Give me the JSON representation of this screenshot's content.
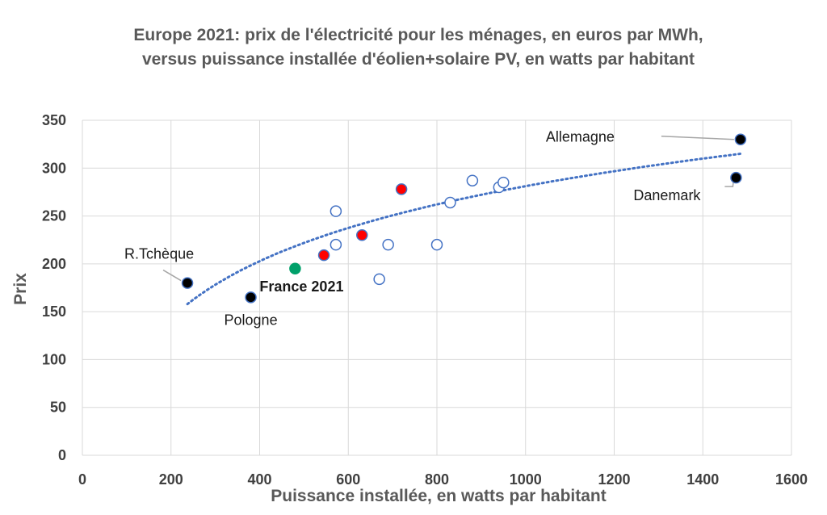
{
  "chart_data": {
    "type": "scatter",
    "title_lines": [
      "Europe 2021: prix de l'électricité pour les ménages, en euros par MWh,",
      "versus puissance installée d'éolien+solaire PV, en watts par habitant"
    ],
    "xlabel": "Puissance installée, en watts par habitant",
    "ylabel": "Prix",
    "xlim": [
      0,
      1600
    ],
    "ylim": [
      0,
      350
    ],
    "x_ticks": [
      0,
      200,
      400,
      600,
      800,
      1000,
      1200,
      1400,
      1600
    ],
    "y_ticks": [
      0,
      50,
      100,
      150,
      200,
      250,
      300,
      350
    ],
    "grid": true,
    "point_styles": {
      "open": {
        "fill": "#ffffff",
        "stroke": "#4472c4"
      },
      "black": {
        "fill": "#000000",
        "stroke": "#4472c4"
      },
      "red": {
        "fill": "#ff0000",
        "stroke": "#4472c4"
      },
      "green": {
        "fill": "#00a06a",
        "stroke": "#00a06a"
      }
    },
    "points": [
      {
        "x": 237,
        "y": 180,
        "style": "black",
        "label": "R.Tchèque"
      },
      {
        "x": 380,
        "y": 165,
        "style": "black",
        "label": "Pologne"
      },
      {
        "x": 480,
        "y": 195,
        "style": "green",
        "label": "France 2021",
        "bold": true
      },
      {
        "x": 545,
        "y": 209,
        "style": "red"
      },
      {
        "x": 572,
        "y": 255,
        "style": "open"
      },
      {
        "x": 572,
        "y": 220,
        "style": "open"
      },
      {
        "x": 631,
        "y": 230,
        "style": "red"
      },
      {
        "x": 670,
        "y": 184,
        "style": "open"
      },
      {
        "x": 690,
        "y": 220,
        "style": "open"
      },
      {
        "x": 720,
        "y": 278,
        "style": "red"
      },
      {
        "x": 800,
        "y": 220,
        "style": "open"
      },
      {
        "x": 830,
        "y": 264,
        "style": "open"
      },
      {
        "x": 880,
        "y": 287,
        "style": "open"
      },
      {
        "x": 940,
        "y": 280,
        "style": "open"
      },
      {
        "x": 950,
        "y": 285,
        "style": "open"
      },
      {
        "x": 1475,
        "y": 290,
        "style": "black",
        "label": "Danemark"
      },
      {
        "x": 1485,
        "y": 330,
        "style": "black",
        "label": "Allemagne"
      }
    ],
    "trendline": {
      "type": "logarithmic",
      "color": "#4472c4",
      "x_range": [
        237,
        1485
      ],
      "y_start": 158,
      "y_end": 315
    }
  }
}
